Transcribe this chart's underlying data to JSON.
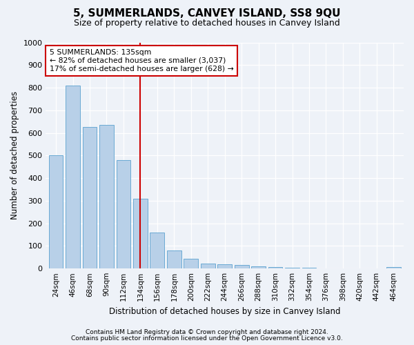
{
  "title": "5, SUMMERLANDS, CANVEY ISLAND, SS8 9QU",
  "subtitle": "Size of property relative to detached houses in Canvey Island",
  "xlabel": "Distribution of detached houses by size in Canvey Island",
  "ylabel": "Number of detached properties",
  "bar_labels": [
    "24sqm",
    "46sqm",
    "68sqm",
    "90sqm",
    "112sqm",
    "134sqm",
    "156sqm",
    "178sqm",
    "200sqm",
    "222sqm",
    "244sqm",
    "266sqm",
    "288sqm",
    "310sqm",
    "332sqm",
    "354sqm",
    "376sqm",
    "398sqm",
    "420sqm",
    "442sqm",
    "464sqm"
  ],
  "bar_values": [
    500,
    810,
    625,
    635,
    480,
    310,
    160,
    80,
    42,
    22,
    20,
    15,
    10,
    6,
    4,
    3,
    2,
    1,
    1,
    0,
    8
  ],
  "bar_color": "#b8d0e8",
  "bar_edge_color": "#6aaad4",
  "marker_index": 5,
  "marker_line_color": "#cc0000",
  "annotation_text": "5 SUMMERLANDS: 135sqm\n← 82% of detached houses are smaller (3,037)\n17% of semi-detached houses are larger (628) →",
  "annotation_box_color": "#ffffff",
  "annotation_box_edge": "#cc0000",
  "ylim": [
    0,
    1000
  ],
  "yticks": [
    0,
    100,
    200,
    300,
    400,
    500,
    600,
    700,
    800,
    900,
    1000
  ],
  "footer_line1": "Contains HM Land Registry data © Crown copyright and database right 2024.",
  "footer_line2": "Contains public sector information licensed under the Open Government Licence v3.0.",
  "background_color": "#eef2f8",
  "plot_bg_color": "#eef2f8",
  "title_fontsize": 11,
  "subtitle_fontsize": 9
}
